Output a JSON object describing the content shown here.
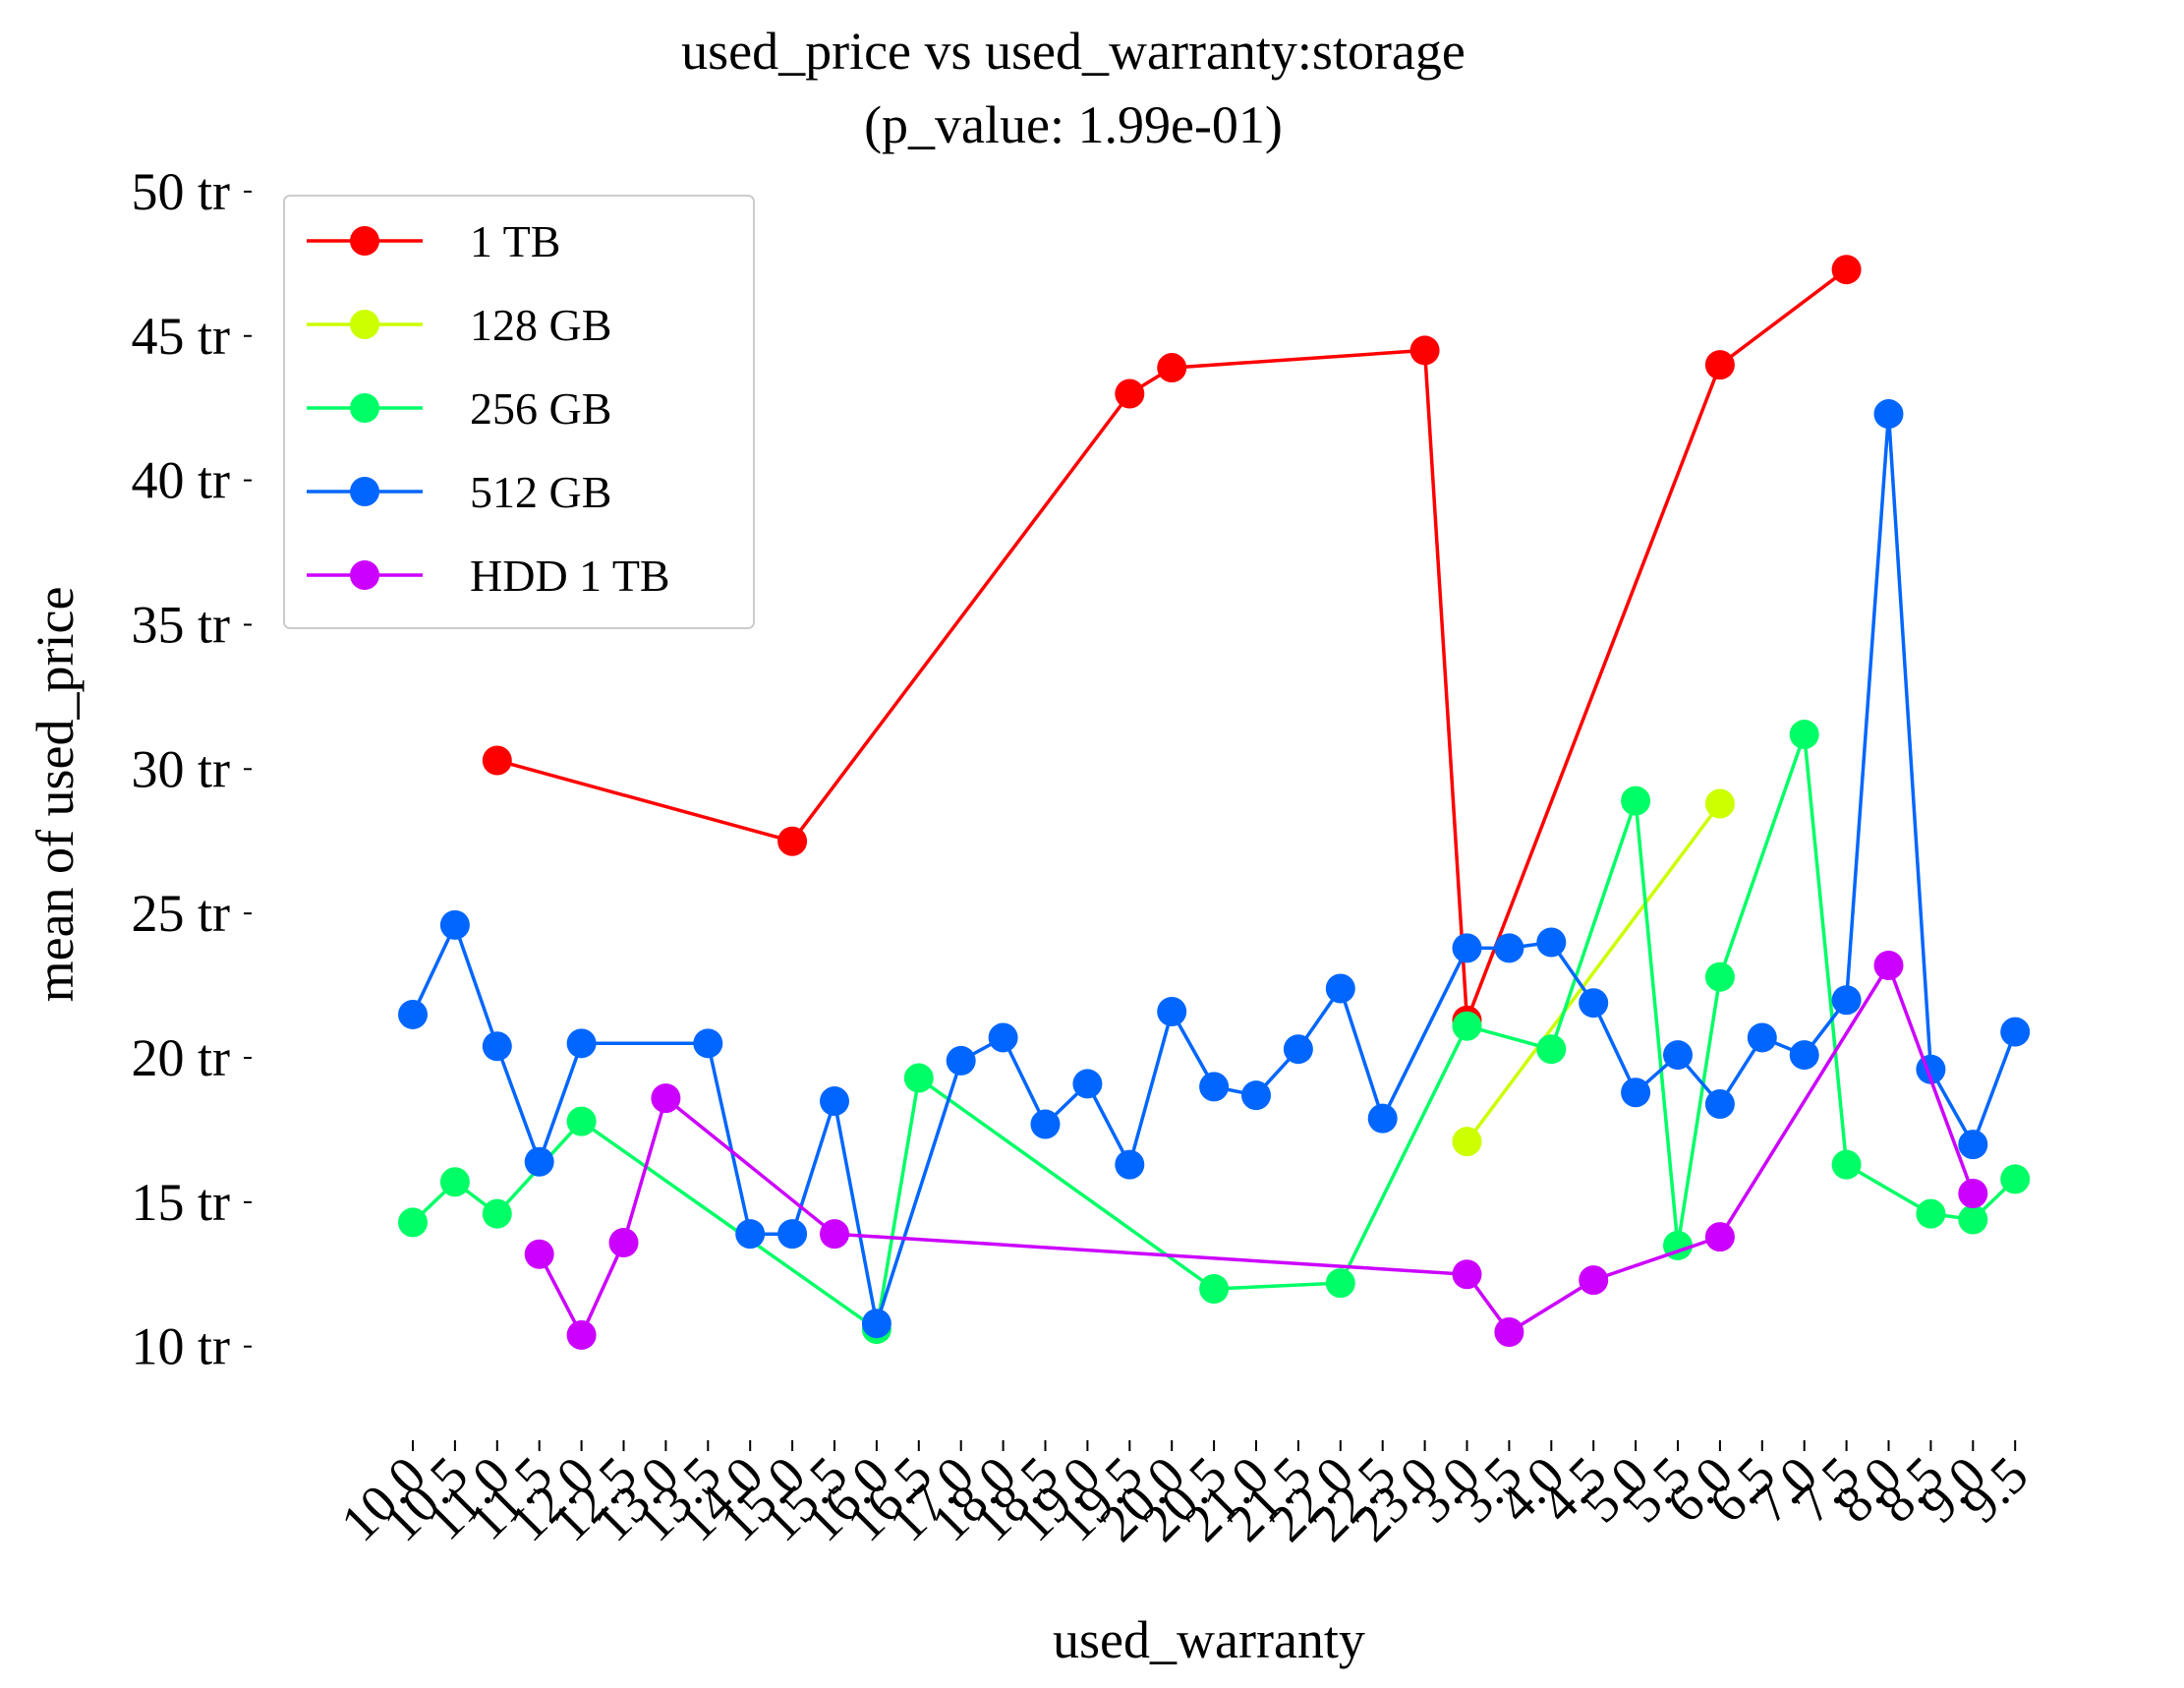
{
  "chart_data": {
    "type": "line",
    "title_line1": "used_price vs used_warranty:storage",
    "title_line2": "(p_value: 1.99e-01)",
    "xlabel": "used_warranty",
    "ylabel": "mean of used_price",
    "ylim": [
      7,
      51
    ],
    "yticks": [
      10,
      15,
      20,
      25,
      30,
      35,
      40,
      45,
      50
    ],
    "ytick_labels": [
      "10 tr",
      "15 tr",
      "20 tr",
      "25 tr",
      "30 tr",
      "35 tr",
      "40 tr",
      "45 tr",
      "50 tr"
    ],
    "categories": [
      "10.0",
      "10.5",
      "11.0",
      "11.5",
      "12.0",
      "12.5",
      "13.0",
      "13.5",
      "14.0",
      "15.0",
      "15.5",
      "16.0",
      "16.5",
      "17.0",
      "18.0",
      "18.5",
      "19.0",
      "19.5",
      "20.0",
      "20.5",
      "21.0",
      "21.5",
      "22.0",
      "22.5",
      "23.0",
      "3.0",
      "3.5",
      "4.0",
      "4.5",
      "5.0",
      "5.5",
      "6.0",
      "6.5",
      "7.0",
      "7.5",
      "8.0",
      "8.5",
      "9.0",
      "9.5"
    ],
    "grid": false,
    "legend_position": "top-left",
    "series": [
      {
        "name": "1 TB",
        "color": "#ff0000",
        "values": [
          null,
          null,
          30.3,
          null,
          null,
          null,
          null,
          null,
          null,
          27.5,
          null,
          null,
          null,
          null,
          null,
          null,
          null,
          43.0,
          43.9,
          null,
          null,
          null,
          null,
          null,
          44.5,
          21.3,
          null,
          null,
          null,
          null,
          null,
          44.0,
          null,
          null,
          47.3,
          null,
          null,
          null,
          null
        ]
      },
      {
        "name": "128 GB",
        "color": "#ccff00",
        "values": [
          null,
          null,
          null,
          null,
          null,
          null,
          null,
          null,
          null,
          null,
          null,
          null,
          null,
          null,
          null,
          null,
          null,
          null,
          null,
          null,
          null,
          null,
          null,
          null,
          null,
          17.1,
          null,
          null,
          null,
          null,
          null,
          28.8,
          null,
          null,
          null,
          null,
          null,
          null,
          null
        ]
      },
      {
        "name": "256 GB",
        "color": "#00ff66",
        "values": [
          14.3,
          15.7,
          14.6,
          null,
          17.8,
          null,
          null,
          null,
          null,
          null,
          null,
          10.6,
          19.3,
          null,
          null,
          null,
          null,
          null,
          null,
          12.0,
          null,
          null,
          12.2,
          null,
          null,
          21.1,
          null,
          20.3,
          null,
          28.9,
          13.5,
          22.8,
          null,
          31.2,
          16.3,
          null,
          14.6,
          14.4,
          15.8
        ]
      },
      {
        "name": "512 GB",
        "color": "#0066ff",
        "values": [
          21.5,
          24.6,
          20.4,
          16.4,
          20.5,
          null,
          null,
          20.5,
          13.9,
          13.9,
          18.5,
          10.8,
          null,
          19.9,
          20.7,
          17.7,
          19.1,
          16.3,
          21.6,
          19.0,
          18.7,
          20.3,
          22.4,
          17.9,
          null,
          23.8,
          23.8,
          24.0,
          21.9,
          18.8,
          20.1,
          18.4,
          20.7,
          20.1,
          22.0,
          42.3,
          19.6,
          17.0,
          20.9
        ]
      },
      {
        "name": "HDD 1 TB",
        "color": "#cc00ff",
        "values": [
          null,
          null,
          null,
          13.2,
          10.4,
          13.6,
          18.6,
          null,
          null,
          null,
          13.9,
          null,
          null,
          null,
          null,
          null,
          null,
          null,
          null,
          null,
          null,
          null,
          null,
          null,
          null,
          12.5,
          10.5,
          null,
          12.3,
          null,
          null,
          13.8,
          null,
          null,
          null,
          23.2,
          null,
          15.3,
          null
        ]
      }
    ]
  }
}
